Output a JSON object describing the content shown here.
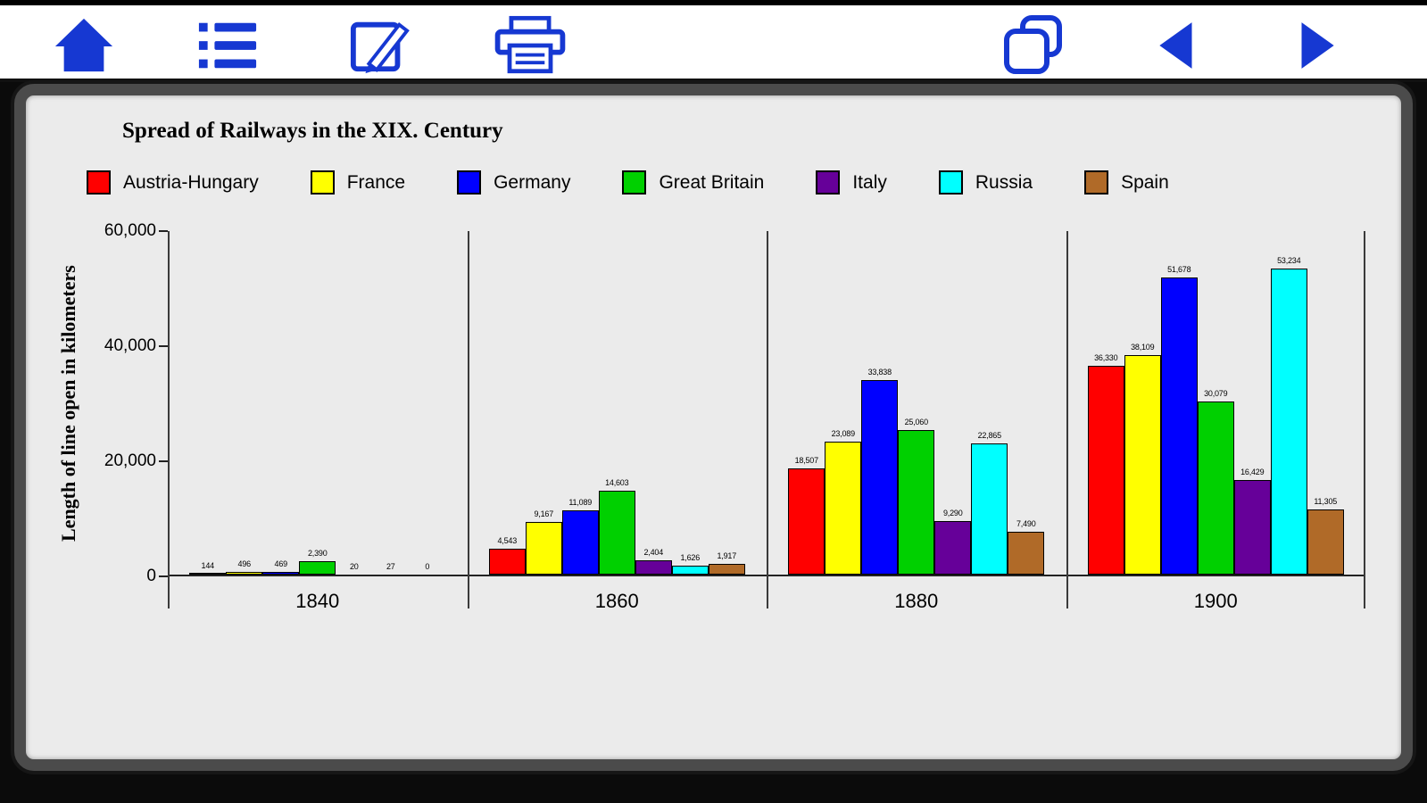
{
  "toolbar": {
    "icon_color": "#1638d2",
    "buttons": [
      {
        "name": "home"
      },
      {
        "name": "contents"
      },
      {
        "name": "edit"
      },
      {
        "name": "print"
      },
      {
        "name": "pages"
      },
      {
        "name": "previous"
      },
      {
        "name": "next"
      }
    ]
  },
  "chart_data": {
    "type": "bar",
    "title": "Spread of Railways in the XIX. Century",
    "ylabel": "Length of line open in kilometers",
    "xlabel": "",
    "categories": [
      "1840",
      "1860",
      "1880",
      "1900"
    ],
    "ylim": [
      0,
      60000
    ],
    "yticks": [
      0,
      20000,
      40000,
      60000
    ],
    "ytick_labels": [
      "0",
      "20,000",
      "40,000",
      "60,000"
    ],
    "grid": false,
    "legend_position": "top",
    "series": [
      {
        "name": "Austria-Hungary",
        "color": "#ff0000",
        "values": [
          144,
          4543,
          18507,
          36330
        ]
      },
      {
        "name": "France",
        "color": "#ffff00",
        "values": [
          496,
          9167,
          23089,
          38109
        ]
      },
      {
        "name": "Germany",
        "color": "#0000ff",
        "values": [
          469,
          11089,
          33838,
          51678
        ]
      },
      {
        "name": "Great Britain",
        "color": "#00d000",
        "values": [
          2390,
          14603,
          25060,
          30079
        ]
      },
      {
        "name": "Italy",
        "color": "#660099",
        "values": [
          20,
          2404,
          9290,
          16429
        ]
      },
      {
        "name": "Russia",
        "color": "#00ffff",
        "values": [
          27,
          1626,
          22865,
          53234
        ]
      },
      {
        "name": "Spain",
        "color": "#b06a28",
        "values": [
          0,
          1917,
          7490,
          11305
        ]
      }
    ]
  }
}
